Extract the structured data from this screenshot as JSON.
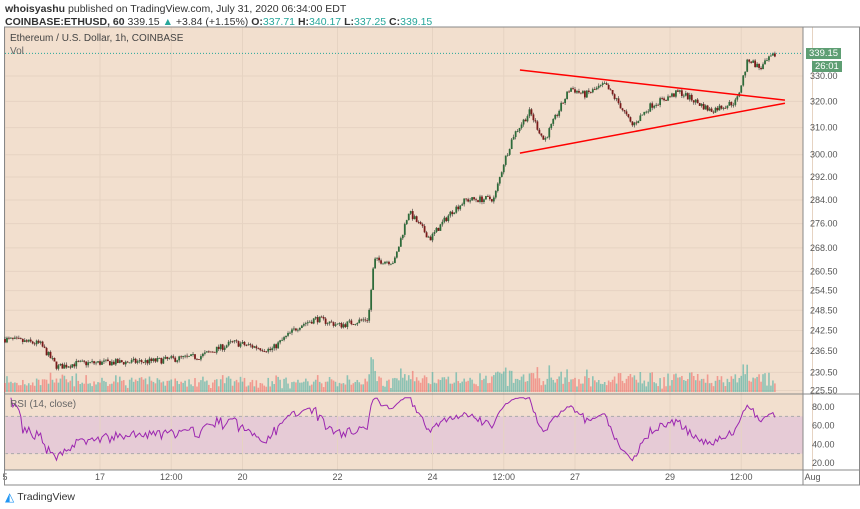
{
  "header": {
    "author": "whoisyashu",
    "published": "published on TradingView.com, July 31, 2020 06:34:00 EDT",
    "symbol": "COINBASE:ETHUSD, 60",
    "price": "339.15",
    "change": "+3.84 (+1.15%)",
    "o_label": "O:",
    "o": "337.71",
    "h_label": "H:",
    "h": "340.17",
    "l_label": "L:",
    "l": "337.25",
    "c_label": "C:",
    "c": "339.15"
  },
  "legend": {
    "title": "Ethereum / U.S. Dollar, 1h, COINBASE",
    "vol": "Vol",
    "rsi": "RSI (14, close)"
  },
  "price_badge": "339.15",
  "countdown_badge": "26:01",
  "logo": "TradingView",
  "colors": {
    "background": "#f2dfce",
    "up": "#26a69a",
    "down": "#ef5350",
    "trendline": "#ff0000",
    "rsi": "#9c27b0",
    "rsi_band": "#e6cbd6",
    "candle_body": "#2e6b3a",
    "candle_down": "#7a1a1a"
  },
  "chart_data": [
    {
      "type": "candlestick",
      "scale": "log",
      "ylim": [
        225.5,
        350
      ],
      "yticks": [
        "330.00",
        "320.00",
        "310.00",
        "300.00",
        "292.00",
        "284.00",
        "276.00",
        "268.00",
        "260.50",
        "254.50",
        "248.50",
        "242.50",
        "236.50",
        "230.50",
        "225.50"
      ],
      "xticks": [
        {
          "label": "5",
          "day": 15
        },
        {
          "label": "17",
          "day": 17
        },
        {
          "label": "12:00",
          "day": 18.5
        },
        {
          "label": "20",
          "day": 20
        },
        {
          "label": "22",
          "day": 22
        },
        {
          "label": "24",
          "day": 24
        },
        {
          "label": "12:00",
          "day": 25.5
        },
        {
          "label": "27",
          "day": 27
        },
        {
          "label": "29",
          "day": 29
        },
        {
          "label": "12:00",
          "day": 30.5
        },
        {
          "label": "Aug",
          "day": 32
        }
      ],
      "x_unit": "July day",
      "close_keypoints": [
        [
          15,
          240
        ],
        [
          15.74,
          238.6
        ],
        [
          16.1,
          232
        ],
        [
          16.5,
          233
        ],
        [
          18.05,
          233.6
        ],
        [
          19.1,
          235
        ],
        [
          19.8,
          239
        ],
        [
          20.6,
          236.8
        ],
        [
          21.2,
          244
        ],
        [
          21.55,
          246
        ],
        [
          22.05,
          244
        ],
        [
          22.65,
          246
        ],
        [
          22.77,
          264
        ],
        [
          23.2,
          263.6
        ],
        [
          23.5,
          280
        ],
        [
          23.95,
          271
        ],
        [
          24.4,
          280
        ],
        [
          24.7,
          284
        ],
        [
          25.3,
          284.5
        ],
        [
          25.5,
          297
        ],
        [
          25.7,
          307
        ],
        [
          26.05,
          316
        ],
        [
          26.35,
          305
        ],
        [
          26.9,
          325.3
        ],
        [
          27.2,
          322.5
        ],
        [
          27.63,
          326.5
        ],
        [
          27.95,
          318.5
        ],
        [
          28.2,
          310.7
        ],
        [
          28.6,
          318.5
        ],
        [
          29.2,
          323.7
        ],
        [
          29.85,
          316.5
        ],
        [
          30.4,
          320
        ],
        [
          30.65,
          337
        ],
        [
          30.9,
          333
        ],
        [
          31.1,
          337
        ],
        [
          31.25,
          339.15
        ]
      ],
      "trendlines": [
        {
          "from": [
            25.84,
            332.4
          ],
          "to": [
            31.42,
            320.5
          ]
        },
        {
          "from": [
            25.84,
            300.6
          ],
          "to": [
            31.42,
            319.3
          ]
        }
      ],
      "last_price": 339.15
    },
    {
      "type": "line",
      "name": "RSI (14, close)",
      "ylim": [
        15,
        90
      ],
      "yticks": [
        "80.00",
        "60.00",
        "40.00",
        "20.00"
      ],
      "band": [
        30,
        70
      ]
    }
  ]
}
